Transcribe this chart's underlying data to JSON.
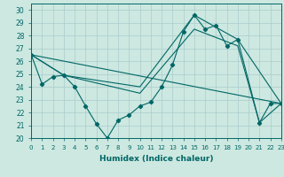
{
  "xlabel": "Humidex (Indice chaleur)",
  "xlim": [
    0,
    23
  ],
  "ylim": [
    20,
    30.5
  ],
  "yticks": [
    20,
    21,
    22,
    23,
    24,
    25,
    26,
    27,
    28,
    29,
    30
  ],
  "xticks": [
    0,
    1,
    2,
    3,
    4,
    5,
    6,
    7,
    8,
    9,
    10,
    11,
    12,
    13,
    14,
    15,
    16,
    17,
    18,
    19,
    20,
    21,
    22,
    23
  ],
  "background_color": "#cce8e0",
  "grid_color": "#aacccc",
  "line_color": "#006666",
  "main_line": {
    "x": [
      0,
      1,
      2,
      3,
      4,
      5,
      6,
      7,
      8,
      9,
      10,
      11,
      12,
      13,
      14,
      15,
      16,
      17,
      18,
      19,
      21,
      22,
      23
    ],
    "y": [
      26.5,
      24.2,
      24.8,
      24.9,
      24.0,
      22.5,
      21.1,
      20.0,
      21.4,
      21.8,
      22.5,
      22.8,
      24.0,
      25.7,
      28.3,
      29.6,
      28.5,
      28.8,
      27.2,
      27.7,
      21.2,
      22.7,
      22.7
    ]
  },
  "extra_lines": [
    {
      "x": [
        0,
        3,
        10,
        15,
        19,
        23
      ],
      "y": [
        26.5,
        24.9,
        24.0,
        29.6,
        27.7,
        22.7
      ]
    },
    {
      "x": [
        0,
        3,
        10,
        15,
        19,
        21,
        23
      ],
      "y": [
        26.5,
        24.9,
        23.5,
        28.5,
        27.2,
        21.2,
        22.7
      ]
    },
    {
      "x": [
        0,
        23
      ],
      "y": [
        26.5,
        22.7
      ]
    }
  ]
}
